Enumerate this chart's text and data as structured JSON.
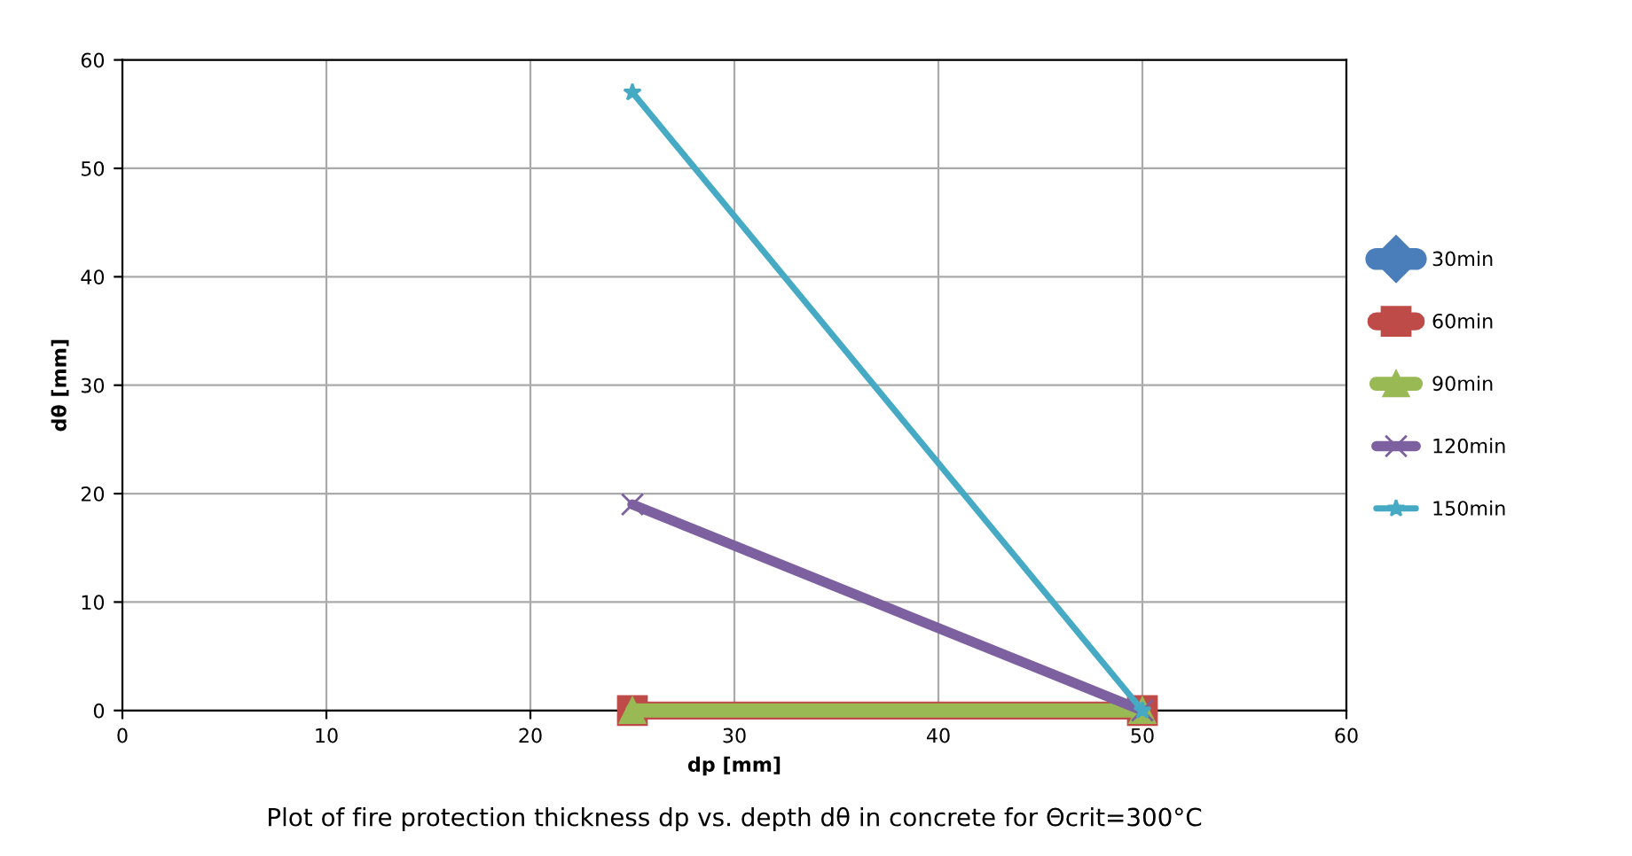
{
  "chart_data": {
    "type": "line",
    "title": "Plot of fire protection thickness dp vs. depth dθ in concrete for Θcrit=300°C",
    "xlabel": "dp [mm]",
    "ylabel": "dθ [mm]",
    "x": [
      25,
      50
    ],
    "series": [
      {
        "name": "30min",
        "color": "#4a7ebb",
        "marker": "diamond",
        "values": [
          null,
          null
        ]
      },
      {
        "name": "60min",
        "color": "#be4b48",
        "marker": "square",
        "values": [
          0,
          0
        ]
      },
      {
        "name": "90min",
        "color": "#98b954",
        "marker": "triangle",
        "values": [
          0,
          0
        ]
      },
      {
        "name": "120min",
        "color": "#7d60a0",
        "marker": "cross",
        "values": [
          19,
          0
        ]
      },
      {
        "name": "150min",
        "color": "#46aac5",
        "marker": "star",
        "values": [
          57,
          0
        ]
      }
    ],
    "xlim": [
      0,
      60
    ],
    "xticks": [
      0,
      10,
      20,
      30,
      40,
      50,
      60
    ],
    "ylim": [
      0,
      60
    ],
    "yticks": [
      0,
      10,
      20,
      30,
      40,
      50,
      60
    ],
    "grid": true,
    "legend": "right"
  }
}
